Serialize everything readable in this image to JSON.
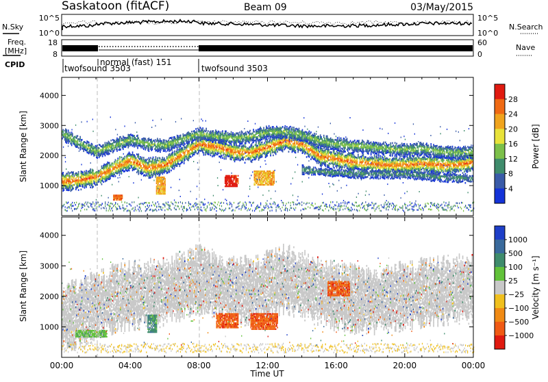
{
  "header": {
    "station": "Saskatoon (fitACF)",
    "beam": "Beam 09",
    "date": "03/May/2015"
  },
  "top_panels": {
    "nsky_label": "N.Sky",
    "nsky_ticks": [
      "10^5",
      "10^0"
    ],
    "nsearch_label": "N.Search",
    "nsearch_ticks": [
      "10^5",
      "10^0"
    ],
    "freq_label_1": "Freq.",
    "freq_label_2": "[MHz]",
    "freq_ticks": [
      "18",
      "8"
    ],
    "nave_label": "Nave",
    "nave_ticks": [
      "60",
      "0"
    ],
    "cpid_label": "CPID",
    "cpid_segments": [
      {
        "label": "twofsound 3503",
        "start_h": 0,
        "end_h": 2
      },
      {
        "label": "normal (fast) 151",
        "start_h": 2,
        "end_h": 8
      },
      {
        "label": "twofsound 3503",
        "start_h": 8,
        "end_h": 24
      }
    ]
  },
  "chart_data": [
    {
      "type": "heatmap",
      "name": "power",
      "ylabel": "Slant Range [km]",
      "xlim": [
        0,
        24
      ],
      "ylim": [
        0,
        4600
      ],
      "yticks": [
        "1000",
        "2000",
        "3000",
        "4000"
      ],
      "colorbar_label": "Power [dB]",
      "colorbar_ticks": [
        "4",
        "8",
        "12",
        "16",
        "20",
        "24",
        "28"
      ],
      "colors": [
        "#1433d8",
        "#3a5ba8",
        "#3f8c6c",
        "#7cc04a",
        "#e8e23a",
        "#f0a41e",
        "#f06a14",
        "#e01a10"
      ],
      "bands": [
        {
          "h": [
            0,
            1,
            2,
            3,
            4,
            5,
            6,
            7,
            8,
            9,
            10,
            11,
            12,
            13,
            14,
            15,
            16,
            17,
            18,
            19,
            20,
            21,
            22,
            23,
            24
          ],
          "r": [
            1100,
            1150,
            1250,
            1550,
            1800,
            1550,
            1650,
            2000,
            2350,
            2250,
            2100,
            2050,
            2250,
            2450,
            2350,
            1950,
            1850,
            1750,
            1700,
            1650,
            1650,
            1700,
            1650,
            1650,
            1750
          ],
          "thickness": 260,
          "level": 6
        },
        {
          "h": [
            0,
            1,
            2,
            3,
            4,
            5,
            6,
            7,
            8,
            9,
            10,
            11,
            12,
            13,
            14,
            15,
            16,
            17,
            18,
            19,
            20,
            21,
            22,
            23,
            24
          ],
          "r": [
            2700,
            2400,
            2100,
            2300,
            2500,
            2350,
            2300,
            2500,
            2700,
            2600,
            2550,
            2600,
            2750,
            2750,
            2650,
            2450,
            2350,
            2300,
            2250,
            2200,
            2150,
            2200,
            2100,
            2050,
            2100
          ],
          "thickness": 180,
          "level": 3
        },
        {
          "h": [
            14,
            16,
            18,
            20,
            22,
            24
          ],
          "r": [
            1500,
            1400,
            1350,
            1350,
            1250,
            1200
          ],
          "thickness": 120,
          "level": 2
        }
      ],
      "patches": [
        {
          "h0": 9.5,
          "h1": 10.3,
          "r0": 950,
          "r1": 1350,
          "level": 7
        },
        {
          "h0": 11.2,
          "h1": 12.4,
          "r0": 1000,
          "r1": 1500,
          "level": 5
        },
        {
          "h0": 5.5,
          "h1": 6.0,
          "r0": 700,
          "r1": 1300,
          "level": 5
        },
        {
          "h0": 3.0,
          "h1": 3.5,
          "r0": 500,
          "r1": 700,
          "level": 6
        }
      ]
    },
    {
      "type": "heatmap",
      "name": "velocity",
      "ylabel": "Slant Range [km]",
      "xlabel": "Time UT",
      "xlim": [
        0,
        24
      ],
      "ylim": [
        0,
        4600
      ],
      "xticks": [
        "00:00",
        "04:00",
        "08:00",
        "12:00",
        "16:00",
        "20:00",
        "00:00"
      ],
      "yticks": [
        "1000",
        "2000",
        "3000",
        "4000"
      ],
      "colorbar_label": "Velocity [m s⁻¹]",
      "colorbar_ticks": [
        "1000",
        "500",
        "100",
        "25",
        "−25",
        "−100",
        "−500",
        "−1000"
      ],
      "colors": [
        "#1e3fc8",
        "#3a6a9c",
        "#3f8c6c",
        "#62c23a",
        "#c8c8c8",
        "#f0c01e",
        "#f08a14",
        "#f05a14",
        "#e01a10"
      ],
      "bands": [
        {
          "h": [
            0,
            1,
            2,
            3,
            4,
            5,
            6,
            7,
            8,
            9,
            10,
            11,
            12,
            13,
            14,
            15,
            16,
            17,
            18,
            19,
            20,
            21,
            22,
            23,
            24
          ],
          "r": [
            1300,
            1400,
            1700,
            1900,
            2000,
            2050,
            2150,
            2350,
            2550,
            2350,
            2200,
            2150,
            2350,
            2550,
            2350,
            2150,
            2000,
            1900,
            1850,
            1900,
            2000,
            2100,
            2150,
            2200,
            2250
          ],
          "thickness": 900,
          "level": 4
        }
      ],
      "patches": [
        {
          "h0": 9.0,
          "h1": 10.3,
          "r0": 950,
          "r1": 1450,
          "level": 7
        },
        {
          "h0": 11.0,
          "h1": 12.6,
          "r0": 900,
          "r1": 1450,
          "level": 7
        },
        {
          "h0": 15.5,
          "h1": 16.8,
          "r0": 2000,
          "r1": 2500,
          "level": 7
        },
        {
          "h0": 0.8,
          "h1": 2.6,
          "r0": 650,
          "r1": 900,
          "level": 3
        },
        {
          "h0": 5.0,
          "h1": 5.5,
          "r0": 800,
          "r1": 1400,
          "level": 2
        }
      ]
    }
  ]
}
